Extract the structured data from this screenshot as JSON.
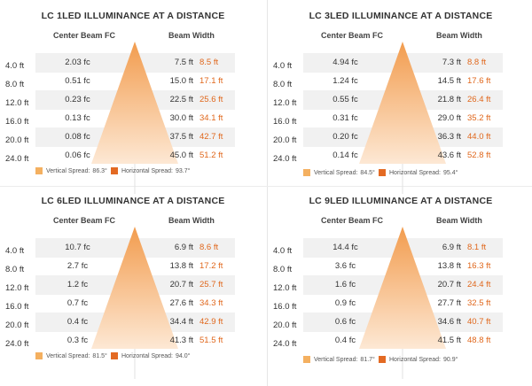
{
  "labels": {
    "center_beam": "Center Beam FC",
    "beam_width": "Beam Width",
    "vertical_prefix": "Vertical Spread:",
    "horizontal_prefix": "Horizontal Spread:"
  },
  "colors": {
    "vertical": "#f4b060",
    "horizontal": "#e36a23",
    "cone_top": "#f29c4e",
    "cone_bottom": "#fde8d4"
  },
  "chart_data": [
    {
      "type": "table",
      "title": "LC 1LED ILLUMINANCE AT A DISTANCE",
      "distances": [
        "4.0 ft",
        "8.0 ft",
        "12.0 ft",
        "16.0 ft",
        "20.0 ft",
        "24.0 ft"
      ],
      "center_beam_fc": [
        "2.03 fc",
        "0.51 fc",
        "0.23 fc",
        "0.13 fc",
        "0.08 fc",
        "0.06 fc"
      ],
      "beam_width_vertical": [
        "7.5 ft",
        "15.0 ft",
        "22.5 ft",
        "30.0 ft",
        "37.5 ft",
        "45.0 ft"
      ],
      "beam_width_horizontal": [
        "8.5 ft",
        "17.1 ft",
        "25.6 ft",
        "34.1 ft",
        "42.7 ft",
        "51.2 ft"
      ],
      "vertical_spread": "86.3°",
      "horizontal_spread": "93.7°"
    },
    {
      "type": "table",
      "title": "LC 3LED ILLUMINANCE AT A DISTANCE",
      "distances": [
        "4.0 ft",
        "8.0 ft",
        "12.0 ft",
        "16.0 ft",
        "20.0 ft",
        "24.0 ft"
      ],
      "center_beam_fc": [
        "4.94 fc",
        "1.24 fc",
        "0.55 fc",
        "0.31 fc",
        "0.20 fc",
        "0.14 fc"
      ],
      "beam_width_vertical": [
        "7.3 ft",
        "14.5 ft",
        "21.8 ft",
        "29.0 ft",
        "36.3 ft",
        "43.6 ft"
      ],
      "beam_width_horizontal": [
        "8.8 ft",
        "17.6 ft",
        "26.4 ft",
        "35.2 ft",
        "44.0 ft",
        "52.8 ft"
      ],
      "vertical_spread": "84.5°",
      "horizontal_spread": "95.4°"
    },
    {
      "type": "table",
      "title": "LC 6LED ILLUMINANCE AT A DISTANCE",
      "distances": [
        "4.0 ft",
        "8.0 ft",
        "12.0 ft",
        "16.0 ft",
        "20.0 ft",
        "24.0 ft"
      ],
      "center_beam_fc": [
        "10.7 fc",
        "2.7 fc",
        "1.2 fc",
        "0.7 fc",
        "0.4 fc",
        "0.3 fc"
      ],
      "beam_width_vertical": [
        "6.9 ft",
        "13.8 ft",
        "20.7 ft",
        "27.6 ft",
        "34.4 ft",
        "41.3 ft"
      ],
      "beam_width_horizontal": [
        "8.6 ft",
        "17.2 ft",
        "25.7 ft",
        "34.3 ft",
        "42.9 ft",
        "51.5 ft"
      ],
      "vertical_spread": "81.5°",
      "horizontal_spread": "94.0°"
    },
    {
      "type": "table",
      "title": "LC 9LED ILLUMINANCE AT A DISTANCE",
      "distances": [
        "4.0 ft",
        "8.0 ft",
        "12.0 ft",
        "16.0 ft",
        "20.0 ft",
        "24.0 ft"
      ],
      "center_beam_fc": [
        "14.4 fc",
        "3.6 fc",
        "1.6 fc",
        "0.9 fc",
        "0.6 fc",
        "0.4 fc"
      ],
      "beam_width_vertical": [
        "6.9 ft",
        "13.8 ft",
        "20.7 ft",
        "27.7 ft",
        "34.6 ft",
        "41.5 ft"
      ],
      "beam_width_horizontal": [
        "8.1 ft",
        "16.3 ft",
        "24.4 ft",
        "32.5 ft",
        "40.7 ft",
        "48.8 ft"
      ],
      "vertical_spread": "81.7°",
      "horizontal_spread": "90.9°"
    }
  ]
}
